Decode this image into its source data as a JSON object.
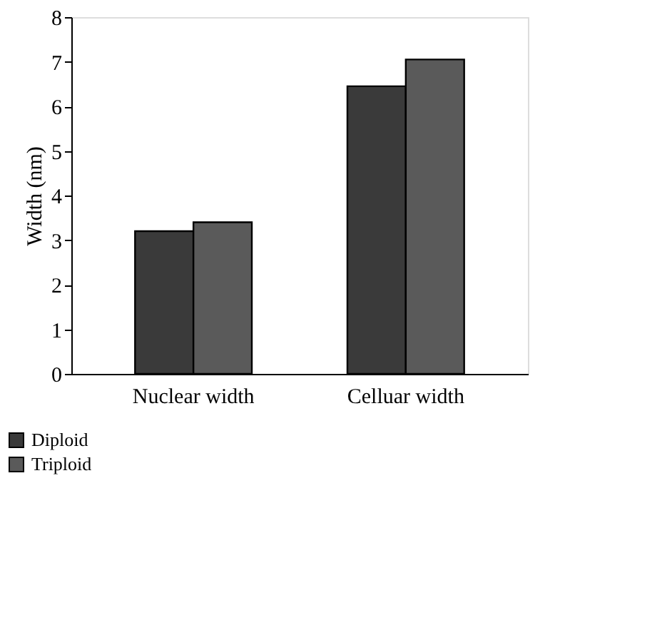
{
  "chart_data": {
    "type": "bar",
    "ylabel": "Width (nm)",
    "categories": [
      "Nuclear width",
      "Celluar width"
    ],
    "series": [
      {
        "name": "Diploid",
        "color": "#3a3a3a",
        "values": [
          3.2,
          6.45
        ]
      },
      {
        "name": "Triploid",
        "color": "#5a5a5a",
        "values": [
          3.4,
          7.05
        ]
      }
    ],
    "ylim": [
      0,
      8
    ],
    "yticks": [
      0,
      1,
      2,
      3,
      4,
      5,
      6,
      7,
      8
    ],
    "grid": false,
    "legend": "bottom left"
  }
}
